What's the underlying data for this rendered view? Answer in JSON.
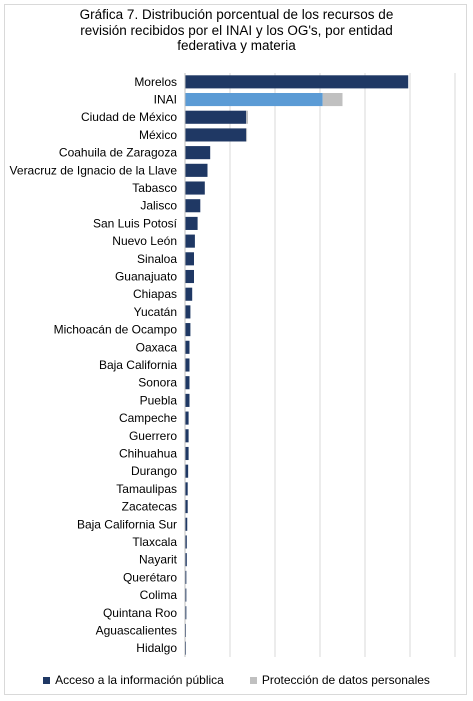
{
  "chart_data": {
    "type": "bar",
    "orientation": "horizontal",
    "stacked": true,
    "title_lines": [
      "Gráfica 7. Distribución porcentual de los recursos de",
      "revisión recibidos por el INAI y los OG's, por entidad",
      "federativa y materia"
    ],
    "categories": [
      "Morelos",
      "INAI",
      "Ciudad de México",
      "México",
      "Coahuila de Zaragoza",
      "Veracruz de Ignacio de la Llave",
      "Tabasco",
      "Jalisco",
      "San Luis Potosí",
      "Nuevo León",
      "Sinaloa",
      "Guanajuato",
      "Chiapas",
      "Yucatán",
      "Michoacán de Ocampo",
      "Oaxaca",
      "Baja California",
      "Sonora",
      "Puebla",
      "Campeche",
      "Guerrero",
      "Chihuahua",
      "Durango",
      "Tamaulipas",
      "Zacatecas",
      "Baja California Sur",
      "Tlaxcala",
      "Nayarit",
      "Querétaro",
      "Colima",
      "Quintana Roo",
      "Aguascalientes",
      "Hidalgo"
    ],
    "series": [
      {
        "name": "Acceso a la información pública",
        "values": [
          24.8,
          15.3,
          6.8,
          6.8,
          2.8,
          2.5,
          2.2,
          1.7,
          1.4,
          1.1,
          1.0,
          1.0,
          0.8,
          0.6,
          0.6,
          0.5,
          0.5,
          0.5,
          0.5,
          0.4,
          0.4,
          0.4,
          0.35,
          0.3,
          0.3,
          0.25,
          0.2,
          0.2,
          0.15,
          0.15,
          0.15,
          0.05,
          0.05
        ]
      },
      {
        "name": "Protección de datos personales",
        "values": [
          0,
          2.2,
          0.2,
          0.1,
          0,
          0,
          0,
          0,
          0,
          0,
          0,
          0,
          0,
          0,
          0,
          0,
          0,
          0,
          0,
          0,
          0,
          0,
          0,
          0,
          0,
          0,
          0,
          0,
          0,
          0,
          0,
          0,
          0
        ]
      }
    ],
    "xlim": [
      0,
      30
    ],
    "grid": true,
    "legend_position": "bottom",
    "colors": {
      "acceso": "#1f3864",
      "acceso_highlight": "#5b9bd5",
      "proteccion": "#c0c0c0",
      "gridline": "#d9d9d9"
    },
    "highlight_category": "INAI"
  }
}
